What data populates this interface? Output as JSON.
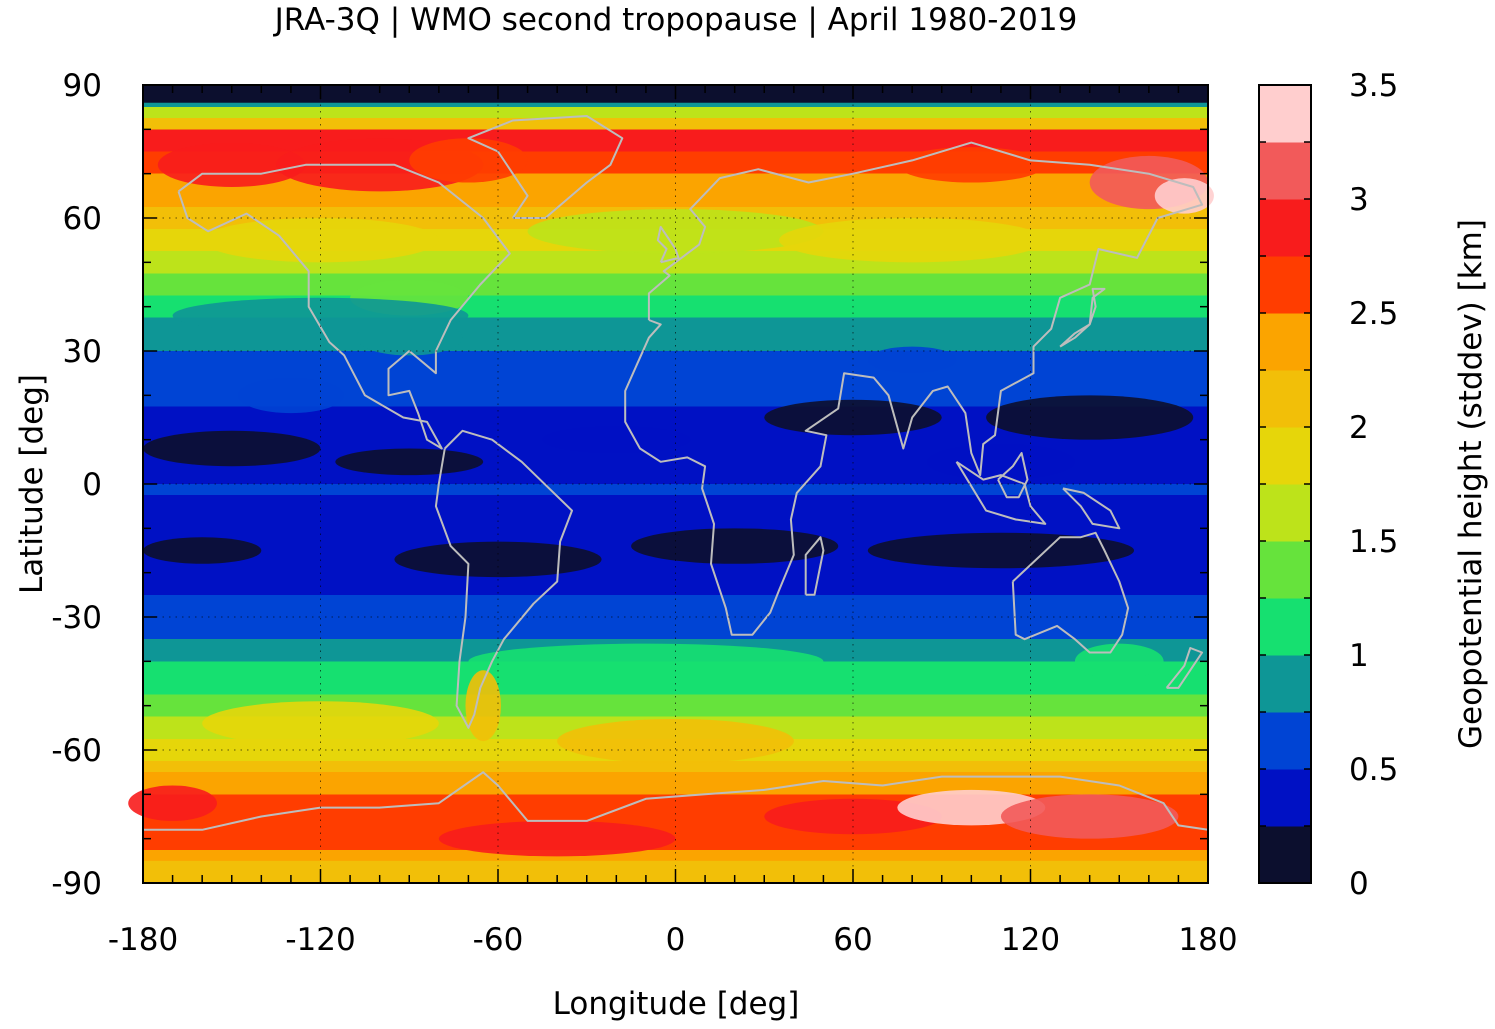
{
  "chart_data": {
    "type": "heatmap",
    "title": "JRA-3Q | WMO second tropopause | April 1980-2019",
    "xlabel": "Longitude [deg]",
    "ylabel": "Latitude [deg]",
    "colorbar_label": "Geopotential height (stddev) [km]",
    "xlim": [
      -180,
      180
    ],
    "ylim": [
      -90,
      90
    ],
    "x_ticks": [
      "-180",
      "-120",
      "-60",
      "0",
      "60",
      "120",
      "180"
    ],
    "y_ticks": [
      "90",
      "60",
      "30",
      "0",
      "-30",
      "-60",
      "-90"
    ],
    "grid": true,
    "coastlines_color": "#bdbdbd",
    "colorbar": {
      "vmin": 0,
      "vmax": 3.5,
      "tick_labels": [
        "3.5",
        "3",
        "2.5",
        "2",
        "1.5",
        "1",
        "0.5",
        "0"
      ],
      "colors": [
        "#0c0f2e",
        "#0011c4",
        "#0044d4",
        "#0e9696",
        "#16e070",
        "#66e33c",
        "#bde31a",
        "#e6d60a",
        "#f2bf08",
        "#fba400",
        "#ff3d00",
        "#f81c1c",
        "#f25a5a",
        "#ffcece"
      ]
    },
    "zonal_mean_stddev_km": {
      "latitude": [
        90,
        80,
        70,
        60,
        50,
        40,
        30,
        20,
        10,
        0,
        -10,
        -20,
        -30,
        -40,
        -50,
        -60,
        -70,
        -80,
        -90
      ],
      "value": [
        0.1,
        2.9,
        2.4,
        2.1,
        1.6,
        1.0,
        0.7,
        0.5,
        0.3,
        0.5,
        0.3,
        0.4,
        0.6,
        1.0,
        1.4,
        1.9,
        2.6,
        2.6,
        2.1
      ]
    }
  }
}
